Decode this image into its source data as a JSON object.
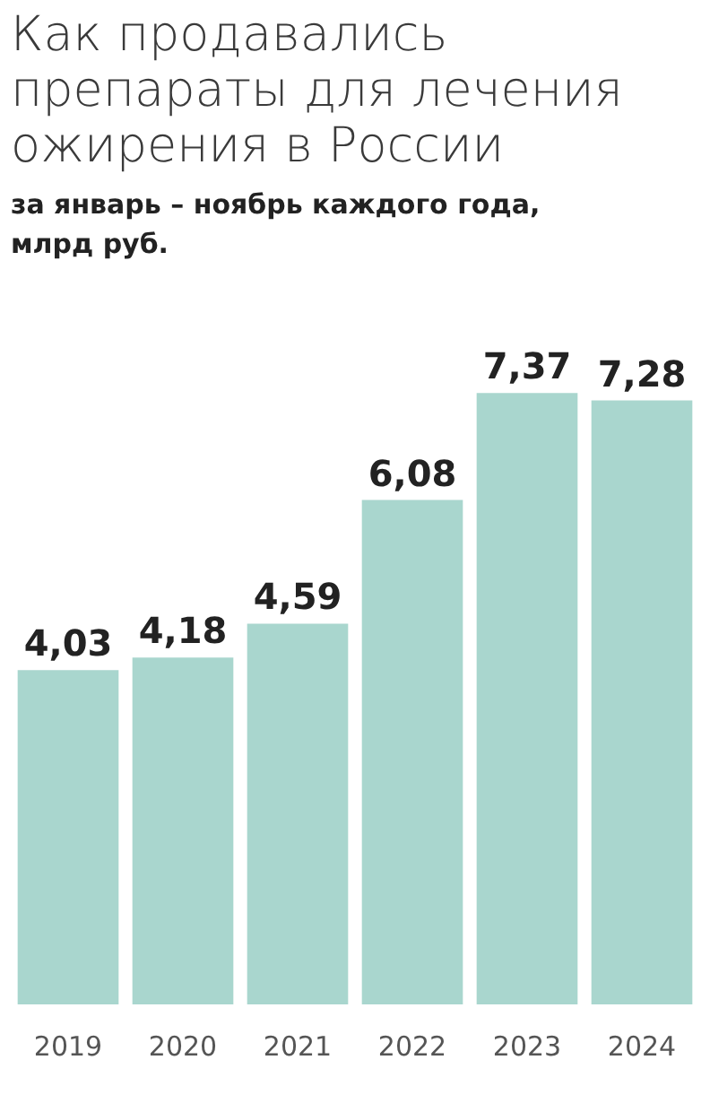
{
  "chart_data": {
    "type": "bar",
    "title": "Как продавались препараты для лечения ожирения в России",
    "subtitle": "за январь – ноябрь каждого года, млрд руб.",
    "categories": [
      "2019",
      "2020",
      "2021",
      "2022",
      "2023",
      "2024"
    ],
    "values": [
      4.03,
      4.18,
      4.59,
      6.08,
      7.37,
      7.28
    ],
    "value_labels": [
      "4,03",
      "4,18",
      "4,59",
      "6,08",
      "7,37",
      "7,28"
    ],
    "color": "#a9d6ce"
  }
}
